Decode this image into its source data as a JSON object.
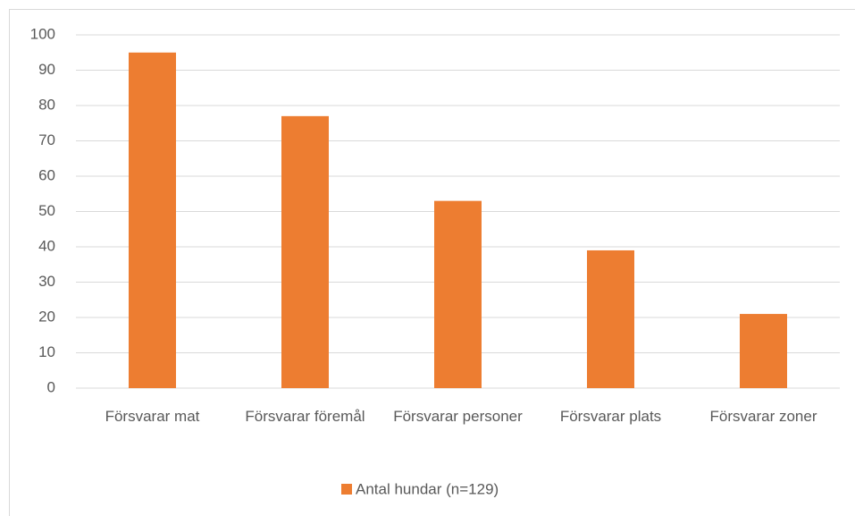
{
  "chart_data": {
    "type": "bar",
    "categories": [
      "Försvarar mat",
      "Försvarar föremål",
      "Försvarar personer",
      "Försvarar plats",
      "Försvarar zoner"
    ],
    "series": [
      {
        "name": "Antal hundar (n=129)",
        "color": "#ed7d31",
        "values": [
          95,
          77,
          53,
          39,
          21
        ]
      }
    ],
    "ylim": [
      0,
      100
    ],
    "yticks": [
      0,
      10,
      20,
      30,
      40,
      50,
      60,
      70,
      80,
      90,
      100
    ],
    "grid": true,
    "legend": "bottom"
  }
}
